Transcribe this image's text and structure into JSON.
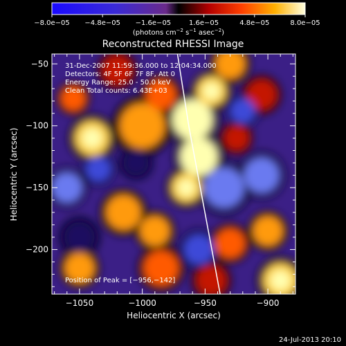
{
  "chart_data": {
    "type": "heatmap",
    "title": "Reconstructed RHESSI Image",
    "xlabel": "Heliocentric X (arcsec)",
    "ylabel": "Heliocentric Y (arcsec)",
    "xlim": [
      -1072,
      -878
    ],
    "ylim": [
      -236,
      -42
    ],
    "x_ticks": [
      -1050,
      -1000,
      -950,
      -900
    ],
    "y_ticks": [
      -50,
      -100,
      -150,
      -200
    ],
    "x_tick_labels": [
      "−1050",
      "−1000",
      "−950",
      "−900"
    ],
    "y_tick_labels": [
      "−50",
      "−100",
      "−150",
      "−200"
    ],
    "colorbar": {
      "range": [
        -8e-05,
        8e-05
      ],
      "tick_labels": [
        "−8.0e−05",
        "−4.8e−05",
        "−1.6e−05",
        "1.6e−05",
        "4.8e−05",
        "8.0e−05"
      ],
      "units_prefix": "(photons cm",
      "units_exp1": "−2",
      "units_mid": " s",
      "units_exp2": "−1",
      "units_mid2": " asec",
      "units_exp3": "−2",
      "units_suffix": ")"
    },
    "annotations": [
      "31-Dec-2007 11:59:36.000 to 12:04:34.000",
      "Detectors: 4F 5F 6F 7F 8F, Att 0",
      "Energy Range: 25.0 - 50.0 keV",
      "Clean    Total counts: 6.43E+03"
    ],
    "peak_label": "Position of Peak = [−956,−142]",
    "peak": [
      -956,
      -142
    ],
    "limb": [
      [
        -972,
        -42
      ],
      [
        -963,
        -100
      ],
      [
        -952,
        -160
      ],
      [
        -938,
        -236
      ]
    ],
    "blobs": [
      {
        "x": -960,
        "y": -95,
        "v": 1.0,
        "r": 16
      },
      {
        "x": -955,
        "y": -125,
        "v": 0.95,
        "r": 15
      },
      {
        "x": -945,
        "y": -72,
        "v": 0.8,
        "r": 12
      },
      {
        "x": -965,
        "y": -150,
        "v": 0.75,
        "r": 12
      },
      {
        "x": -1000,
        "y": -100,
        "v": 0.55,
        "r": 18
      },
      {
        "x": -985,
        "y": -75,
        "v": 0.5,
        "r": 12
      },
      {
        "x": -1040,
        "y": -110,
        "v": 0.7,
        "r": 14
      },
      {
        "x": -1055,
        "y": -78,
        "v": 0.45,
        "r": 10
      },
      {
        "x": -1015,
        "y": -170,
        "v": 0.6,
        "r": 14
      },
      {
        "x": -990,
        "y": -185,
        "v": 0.6,
        "r": 12
      },
      {
        "x": -1050,
        "y": -215,
        "v": 0.55,
        "r": 12
      },
      {
        "x": -985,
        "y": -215,
        "v": 0.5,
        "r": 14
      },
      {
        "x": -930,
        "y": -50,
        "v": 0.55,
        "r": 12
      },
      {
        "x": -905,
        "y": -75,
        "v": 0.4,
        "r": 12
      },
      {
        "x": -925,
        "y": -110,
        "v": 0.35,
        "r": 10
      },
      {
        "x": -930,
        "y": -195,
        "v": 0.5,
        "r": 12
      },
      {
        "x": -900,
        "y": -185,
        "v": 0.55,
        "r": 12
      },
      {
        "x": -890,
        "y": -225,
        "v": 0.7,
        "r": 14
      },
      {
        "x": -945,
        "y": -225,
        "v": 0.4,
        "r": 12
      },
      {
        "x": -1020,
        "y": -55,
        "v": 0.35,
        "r": 12
      },
      {
        "x": -1060,
        "y": -150,
        "v": -0.6,
        "r": 12
      },
      {
        "x": -935,
        "y": -150,
        "v": -0.55,
        "r": 16
      },
      {
        "x": -905,
        "y": -140,
        "v": -0.7,
        "r": 14
      },
      {
        "x": -920,
        "y": -88,
        "v": -0.5,
        "r": 10
      },
      {
        "x": -1035,
        "y": -135,
        "v": -0.5,
        "r": 10
      },
      {
        "x": -955,
        "y": -200,
        "v": -0.45,
        "r": 12
      },
      {
        "x": -1050,
        "y": -190,
        "v": -0.35,
        "r": 12
      },
      {
        "x": -1005,
        "y": -130,
        "v": -0.3,
        "r": 10
      }
    ]
  },
  "footer": {
    "date": "24-Jul-2013 20:10"
  }
}
